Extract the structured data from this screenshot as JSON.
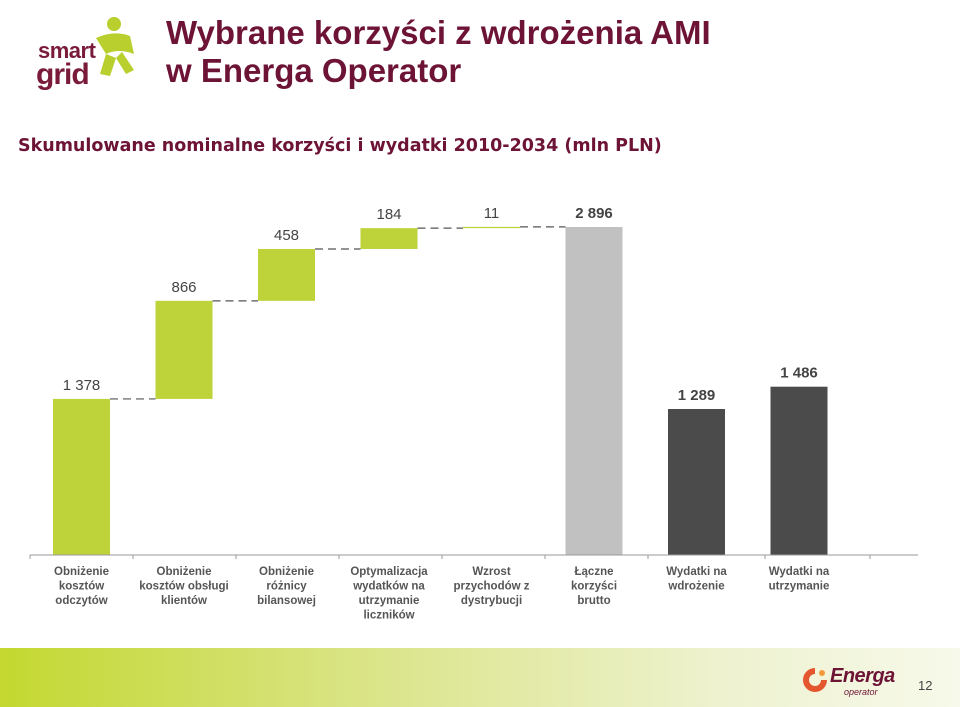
{
  "header": {
    "title_line1": "Wybrane korzyści z wdrożenia AMI",
    "title_line2": "w Energa Operator",
    "logo_word1": "smart",
    "logo_word2": "grid"
  },
  "subtitle": "Skumulowane nominalne korzyści i wydatki 2010-2034 (mln PLN)",
  "footer": {
    "brand": "Energa",
    "brand_sub": "operator",
    "page_number": "12"
  },
  "colors": {
    "green": "#bed23a",
    "gray": "#c1c1c1",
    "dark": "#4b4b4b",
    "maroon": "#6d1436"
  },
  "chart_data": {
    "type": "bar",
    "subtype": "waterfall",
    "categories": [
      "Obniżenie kosztów odczytów",
      "Obniżenie kosztów obsługi klientów",
      "Obniżenie różnicy bilansowej",
      "Optymalizacja wydatków na utrzymanie liczników",
      "Wzrost przychodów z dystrybucji",
      "Łączne korzyści brutto",
      "Wydatki na wdrożenie",
      "Wydatki na utrzymanie"
    ],
    "category_lines": [
      [
        "Obniżenie",
        "kosztów",
        "odczytów"
      ],
      [
        "Obniżenie",
        "kosztów obsługi",
        "klientów"
      ],
      [
        "Obniżenie",
        "różnicy",
        "bilansowej"
      ],
      [
        "Optymalizacja",
        "wydatków na",
        "utrzymanie",
        "liczników"
      ],
      [
        "Wzrost",
        "przychodów z",
        "dystrybucji"
      ],
      [
        "Łączne",
        "korzyści",
        "brutto"
      ],
      [
        "Wydatki na",
        "wdrożenie"
      ],
      [
        "Wydatki na",
        "utrzymanie"
      ]
    ],
    "values": [
      1378,
      866,
      458,
      184,
      11,
      2896,
      1289,
      1486
    ],
    "labels": [
      "1 378",
      "866",
      "458",
      "184",
      "11",
      "2 896",
      "1 289",
      "1 486"
    ],
    "bar_kinds": [
      "increment",
      "increment",
      "increment",
      "increment",
      "increment",
      "total",
      "standalone",
      "standalone"
    ],
    "ylim": [
      0,
      2896
    ],
    "grid": false,
    "legend": "none"
  }
}
